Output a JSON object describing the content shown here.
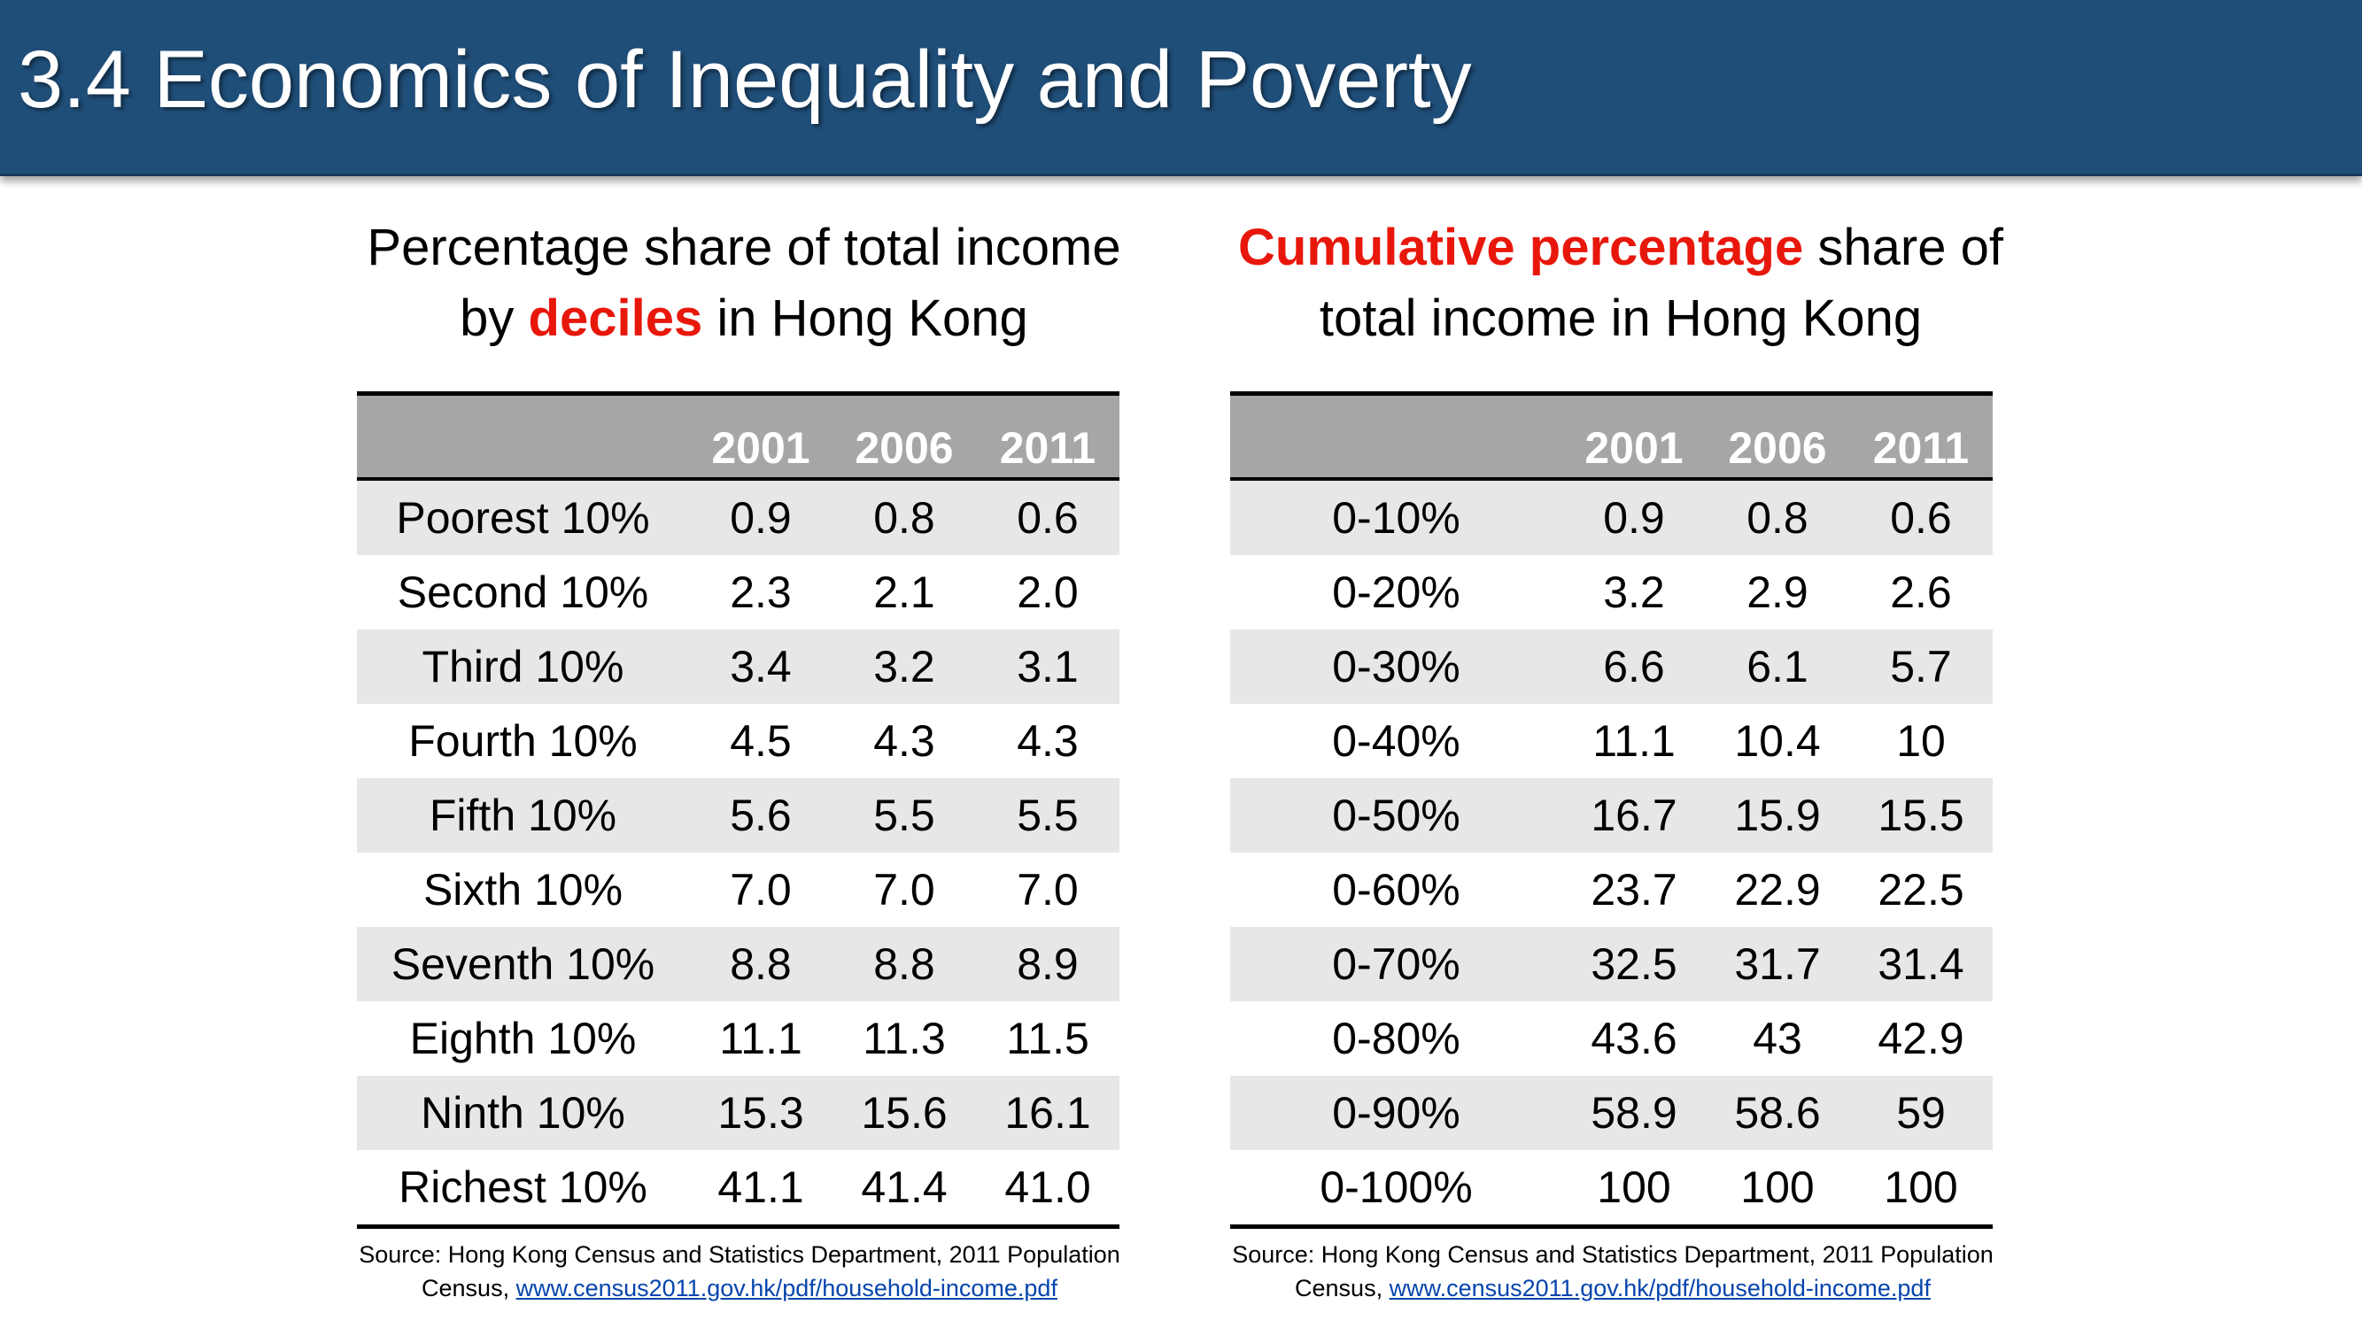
{
  "title": "3.4 Economics of Inequality and Poverty",
  "left": {
    "heading_line1": "Percentage share of total income",
    "heading_pre": "by ",
    "heading_em": "deciles",
    "heading_post": " in Hong Kong",
    "columns": [
      "",
      "2001",
      "2006",
      "2011"
    ],
    "rows": [
      [
        "Poorest 10%",
        "0.9",
        "0.8",
        "0.6"
      ],
      [
        "Second 10%",
        "2.3",
        "2.1",
        "2.0"
      ],
      [
        "Third 10%",
        "3.4",
        "3.2",
        "3.1"
      ],
      [
        "Fourth 10%",
        "4.5",
        "4.3",
        "4.3"
      ],
      [
        "Fifth 10%",
        "5.6",
        "5.5",
        "5.5"
      ],
      [
        "Sixth 10%",
        "7.0",
        "7.0",
        "7.0"
      ],
      [
        "Seventh 10%",
        "8.8",
        "8.8",
        "8.9"
      ],
      [
        "Eighth 10%",
        "11.1",
        "11.3",
        "11.5"
      ],
      [
        "Ninth 10%",
        "15.3",
        "15.6",
        "16.1"
      ],
      [
        "Richest 10%",
        "41.1",
        "41.4",
        "41.0"
      ]
    ],
    "source_line1": "Source: Hong Kong Census and Statistics Department,  2011 Population",
    "source_prefix": "Census, ",
    "source_link": "www.census2011.gov.hk/pdf/household-income.pdf"
  },
  "right": {
    "heading_em": "Cumulative percentage",
    "heading_post": " share of",
    "heading_line2": "total income in Hong Kong",
    "columns": [
      "",
      "2001",
      "2006",
      "2011"
    ],
    "rows": [
      [
        "0-10%",
        "0.9",
        "0.8",
        "0.6"
      ],
      [
        "0-20%",
        "3.2",
        "2.9",
        "2.6"
      ],
      [
        "0-30%",
        "6.6",
        "6.1",
        "5.7"
      ],
      [
        "0-40%",
        "11.1",
        "10.4",
        "10"
      ],
      [
        "0-50%",
        "16.7",
        "15.9",
        "15.5"
      ],
      [
        "0-60%",
        "23.7",
        "22.9",
        "22.5"
      ],
      [
        "0-70%",
        "32.5",
        "31.7",
        "31.4"
      ],
      [
        "0-80%",
        "43.6",
        "43",
        "42.9"
      ],
      [
        "0-90%",
        "58.9",
        "58.6",
        "59"
      ],
      [
        "0-100%",
        "100",
        "100",
        "100"
      ]
    ],
    "source_line1": "Source: Hong Kong Census and Statistics Department,  2011 Population",
    "source_prefix": "Census, ",
    "source_link": "www.census2011.gov.hk/pdf/household-income.pdf"
  }
}
